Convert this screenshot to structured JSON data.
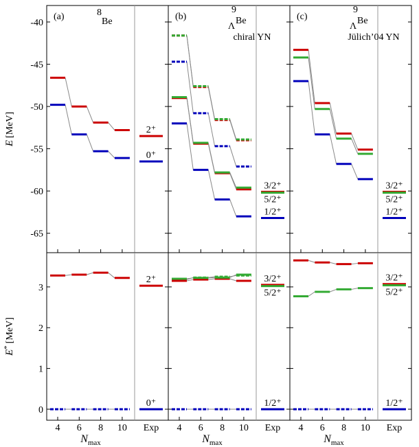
{
  "chart_data": [
    {
      "type": "level",
      "panel": "(a)",
      "mass": "8",
      "nucleus": "Be",
      "y_label": "E",
      "y_unit": "[MeV]",
      "ylim": [
        -67.3,
        -38.05
      ],
      "yticks": [
        -65,
        -60,
        -55,
        -50,
        -45,
        -40
      ],
      "x": [
        4,
        6,
        8,
        10
      ],
      "series": [
        {
          "color": "#cc0000",
          "dashed": false,
          "values": [
            -46.6,
            -50.0,
            -51.9,
            -52.8
          ]
        },
        {
          "color": "#0000bb",
          "dashed": false,
          "values": [
            -49.8,
            -53.3,
            -55.3,
            -56.1
          ]
        }
      ],
      "exp": [
        {
          "value": -53.5,
          "label": "2⁺",
          "color": "#cc0000"
        },
        {
          "value": -56.5,
          "label": "0⁺",
          "color": "#0000bb"
        }
      ]
    },
    {
      "type": "level",
      "panel": "(b)",
      "mass": "9",
      "hyperon": "Λ",
      "nucleus": "Be",
      "subtitle": "chiral YN",
      "ylim": [
        -67.3,
        -38.05
      ],
      "yticks": [
        -65,
        -60,
        -55,
        -50,
        -45,
        -40
      ],
      "x": [
        4,
        6,
        8,
        10
      ],
      "series": [
        {
          "color": "#cc0000",
          "dashed": true,
          "values": [
            -41.6,
            -47.7,
            -51.6,
            -54.0
          ]
        },
        {
          "color": "#33aa33",
          "dashed": true,
          "values": [
            -41.6,
            -47.6,
            -51.5,
            -53.9
          ]
        },
        {
          "color": "#0000bb",
          "dashed": true,
          "values": [
            -44.7,
            -50.8,
            -54.7,
            -57.1
          ]
        },
        {
          "color": "#cc0000",
          "dashed": false,
          "values": [
            -49.0,
            -54.4,
            -57.9,
            -59.8
          ]
        },
        {
          "color": "#33aa33",
          "dashed": false,
          "values": [
            -48.9,
            -54.3,
            -57.8,
            -59.6
          ]
        },
        {
          "color": "#0000bb",
          "dashed": false,
          "values": [
            -52.0,
            -57.5,
            -61.0,
            -63.0
          ]
        }
      ],
      "exp": [
        {
          "value": -60.1,
          "label": "3/2⁺",
          "color": "#cc0000"
        },
        {
          "value": -60.2,
          "label": "5/2⁺",
          "color": "#33aa33"
        },
        {
          "value": -63.2,
          "label": "1/2⁺",
          "color": "#0000bb"
        }
      ]
    },
    {
      "type": "level",
      "panel": "(c)",
      "mass": "9",
      "hyperon": "Λ",
      "nucleus": "Be",
      "subtitle": "Jülich’04 YN",
      "ylim": [
        -67.3,
        -38.05
      ],
      "yticks": [
        -65,
        -60,
        -55,
        -50,
        -45,
        -40
      ],
      "x": [
        4,
        6,
        8,
        10
      ],
      "series": [
        {
          "color": "#cc0000",
          "dashed": false,
          "values": [
            -43.3,
            -49.6,
            -53.2,
            -55.1
          ]
        },
        {
          "color": "#33aa33",
          "dashed": false,
          "values": [
            -44.2,
            -50.3,
            -53.8,
            -55.6
          ]
        },
        {
          "color": "#0000bb",
          "dashed": false,
          "values": [
            -47.0,
            -53.3,
            -56.8,
            -58.6
          ]
        }
      ],
      "exp": [
        {
          "value": -60.1,
          "label": "3/2⁺",
          "color": "#cc0000"
        },
        {
          "value": -60.2,
          "label": "5/2⁺",
          "color": "#33aa33"
        },
        {
          "value": -63.2,
          "label": "1/2⁺",
          "color": "#0000bb"
        }
      ]
    },
    {
      "type": "level",
      "y_label": "E",
      "y_label_sup": "*",
      "y_unit": "[MeV]",
      "ylim": [
        -0.27,
        3.84
      ],
      "yticks": [
        0,
        1,
        2,
        3
      ],
      "x": [
        4,
        6,
        8,
        10
      ],
      "xticks": [
        4,
        6,
        8,
        10
      ],
      "x_label": "N",
      "x_label_sub": "max",
      "exp_label": "Exp",
      "series": [
        {
          "color": "#cc0000",
          "dashed": false,
          "values": [
            3.28,
            3.3,
            3.35,
            3.22
          ]
        },
        {
          "color": "#0000bb",
          "dashed": true,
          "values": [
            0,
            0,
            0,
            0
          ]
        }
      ],
      "exp": [
        {
          "value": 3.03,
          "label": "2⁺",
          "color": "#cc0000"
        },
        {
          "value": 0,
          "label": "0⁺",
          "color": "#0000bb"
        }
      ]
    },
    {
      "type": "level",
      "ylim": [
        -0.27,
        3.84
      ],
      "yticks": [
        0,
        1,
        2,
        3
      ],
      "x": [
        4,
        6,
        8,
        10
      ],
      "xticks": [
        4,
        6,
        8,
        10
      ],
      "x_label": "N",
      "x_label_sub": "max",
      "exp_label": "Exp",
      "series": [
        {
          "color": "#33aa33",
          "dashed": true,
          "values": [
            3.18,
            3.23,
            3.25,
            3.28
          ]
        },
        {
          "color": "#cc0000",
          "dashed": false,
          "values": [
            3.15,
            3.18,
            3.2,
            3.15
          ]
        },
        {
          "color": "#33aa33",
          "dashed": false,
          "values": [
            3.2,
            3.22,
            3.23,
            3.3
          ]
        },
        {
          "color": "#0000bb",
          "dashed": true,
          "values": [
            0,
            0,
            0,
            0
          ]
        }
      ],
      "exp": [
        {
          "value": 3.05,
          "label": "3/2⁺",
          "color": "#cc0000"
        },
        {
          "value": 3.02,
          "label": "5/2⁺",
          "color": "#33aa33"
        },
        {
          "value": 0,
          "label": "1/2⁺",
          "color": "#0000bb"
        }
      ]
    },
    {
      "type": "level",
      "ylim": [
        -0.27,
        3.84
      ],
      "yticks": [
        0,
        1,
        2,
        3
      ],
      "x": [
        4,
        6,
        8,
        10
      ],
      "xticks": [
        4,
        6,
        8,
        10
      ],
      "x_label": "N",
      "x_label_sub": "max",
      "exp_label": "Exp",
      "series": [
        {
          "color": "#cc0000",
          "dashed": false,
          "values": [
            3.65,
            3.6,
            3.56,
            3.58
          ]
        },
        {
          "color": "#33aa33",
          "dashed": false,
          "values": [
            2.77,
            2.88,
            2.94,
            2.97
          ]
        },
        {
          "color": "#0000bb",
          "dashed": true,
          "values": [
            0,
            0,
            0,
            0
          ]
        }
      ],
      "exp": [
        {
          "value": 3.07,
          "label": "3/2⁺",
          "color": "#cc0000"
        },
        {
          "value": 3.04,
          "label": "5/2⁺",
          "color": "#33aa33"
        },
        {
          "value": 0,
          "label": "1/2⁺",
          "color": "#0000bb"
        }
      ]
    }
  ]
}
